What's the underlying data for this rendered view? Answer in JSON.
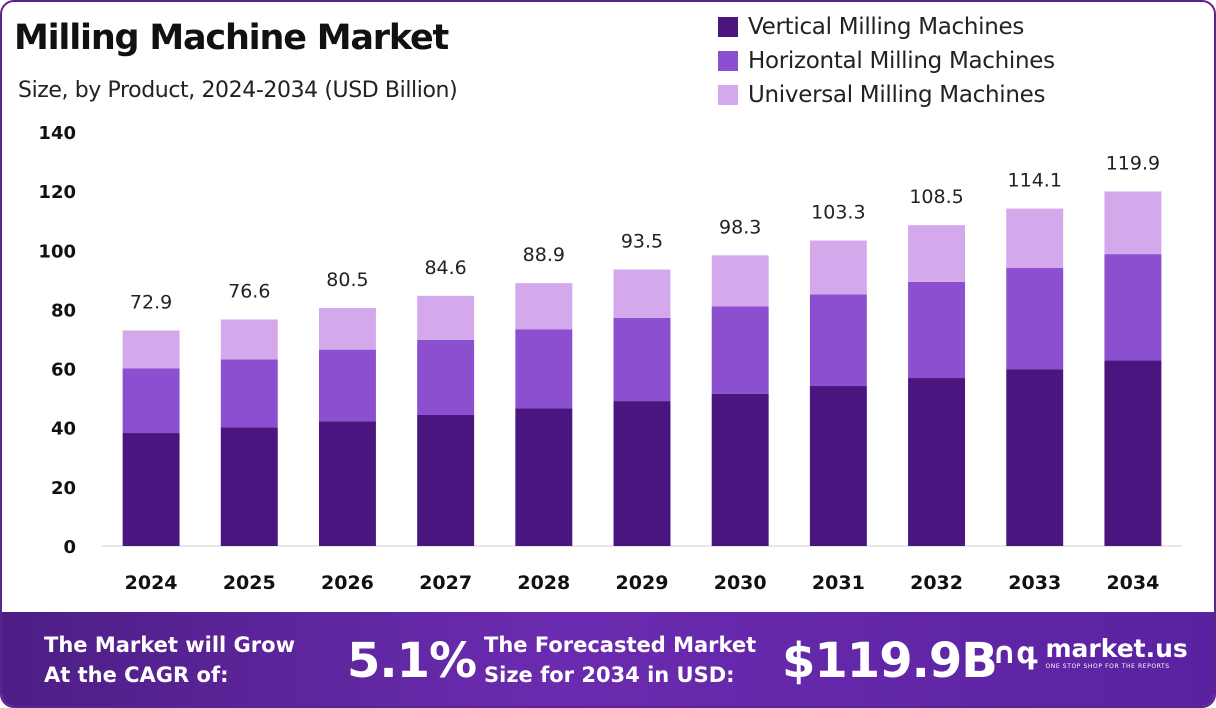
{
  "header": {
    "title": "Milling Machine Market",
    "subtitle": "Size, by Product, 2024-2034 (USD Billion)"
  },
  "legend": [
    {
      "label": "Vertical Milling Machines",
      "color": "#4b1580"
    },
    {
      "label": "Horizontal Milling Machines",
      "color": "#8b4fcf"
    },
    {
      "label": "Universal Milling Machines",
      "color": "#d3a9ec"
    }
  ],
  "chart_data": {
    "type": "bar",
    "stacked": true,
    "categories": [
      "2024",
      "2025",
      "2026",
      "2027",
      "2028",
      "2029",
      "2030",
      "2031",
      "2032",
      "2033",
      "2034"
    ],
    "series": [
      {
        "name": "Vertical Milling Machines",
        "color": "#4b1580",
        "values": [
          38.2,
          40.1,
          42.2,
          44.3,
          46.6,
          49.0,
          51.5,
          54.1,
          56.8,
          59.8,
          62.8
        ]
      },
      {
        "name": "Horizontal Milling Machines",
        "color": "#8b4fcf",
        "values": [
          21.9,
          23.0,
          24.2,
          25.4,
          26.7,
          28.1,
          29.5,
          31.0,
          32.5,
          34.2,
          35.9
        ]
      },
      {
        "name": "Universal Milling Machines",
        "color": "#d3a9ec",
        "values": [
          12.8,
          13.5,
          14.1,
          14.9,
          15.6,
          16.4,
          17.3,
          18.2,
          19.2,
          20.1,
          21.2
        ]
      }
    ],
    "totals": [
      "72.9",
      "76.6",
      "80.5",
      "84.6",
      "88.9",
      "93.5",
      "98.3",
      "103.3",
      "108.5",
      "114.1",
      "119.9"
    ],
    "ylim": [
      0,
      140
    ],
    "yticks": [
      "0",
      "20",
      "40",
      "60",
      "80",
      "100",
      "120",
      "140"
    ],
    "grid": false,
    "legend_position": "top-right"
  },
  "footer": {
    "cagr_label_line1": "The Market will Grow",
    "cagr_label_line2": "At the CAGR of:",
    "cagr_value": "5.1%",
    "forecast_label_line1": "The Forecasted Market",
    "forecast_label_line2": "Size for 2034 in USD:",
    "forecast_value": "$119.9B",
    "brand_name": "market.us",
    "brand_tagline": "ONE STOP SHOP FOR THE REPORTS",
    "brand_icon": "market-us-logo-icon"
  }
}
